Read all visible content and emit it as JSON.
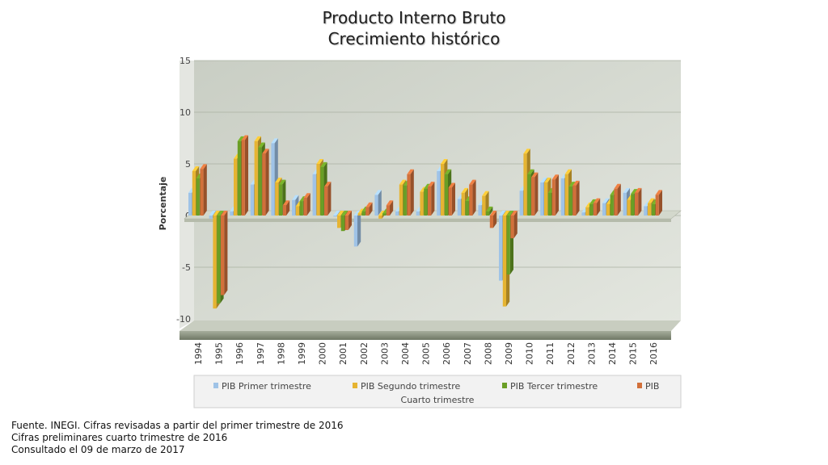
{
  "title_line1": "Producto Interno Bruto",
  "title_line2": "Crecimiento histórico",
  "footer": {
    "line1": "Fuente. INEGI. Cifras revisadas a partir del primer trimestre de 2016",
    "line2": "Cifras preliminares cuarto trimestre de 2016",
    "line3": "Consultado el 09 de marzo de 2017"
  },
  "chart_data": {
    "type": "bar",
    "ylabel": "Porcentaje",
    "ylim": [
      -10,
      15
    ],
    "yticks": [
      15,
      10,
      5,
      0,
      -5,
      -10
    ],
    "grid": true,
    "legend_position": "bottom",
    "categories": [
      "1994",
      "1995",
      "1996",
      "1997",
      "1998",
      "1999",
      "2000",
      "2001",
      "2002",
      "2003",
      "2004",
      "2005",
      "2006",
      "2007",
      "2008",
      "2009",
      "2010",
      "2011",
      "2012",
      "2013",
      "2014",
      "2015",
      "2016"
    ],
    "series": [
      {
        "name": "PIB Primer trimestre",
        "color": "#9fc3e7",
        "values": [
          2.2,
          -0.3,
          0.4,
          3.0,
          7.0,
          1.5,
          4.0,
          -0.1,
          -3.0,
          2.0,
          0.4,
          0.4,
          4.3,
          1.6,
          1.0,
          -6.3,
          2.4,
          3.2,
          3.6,
          0.3,
          1.2,
          2.2,
          0.9
        ]
      },
      {
        "name": "PIB Segundo trimestre",
        "color": "#e6b432",
        "values": [
          4.3,
          -9.0,
          5.5,
          7.2,
          3.2,
          0.9,
          5.0,
          -1.2,
          0.2,
          -0.3,
          3.0,
          2.3,
          5.0,
          2.2,
          1.9,
          -8.8,
          6.0,
          3.2,
          4.0,
          0.8,
          1.1,
          1.5,
          1.2
        ]
      },
      {
        "name": "PIB Tercer trimestre",
        "color": "#6a9e25",
        "values": [
          3.6,
          -8.5,
          7.2,
          6.6,
          3.0,
          1.4,
          4.7,
          -1.5,
          0.4,
          0.2,
          2.9,
          2.6,
          4.0,
          1.4,
          0.4,
          -5.7,
          4.0,
          2.2,
          2.8,
          1.1,
          2.0,
          2.1,
          1.1
        ]
      },
      {
        "name": "PIB\nCuarto trimestre",
        "color": "#d2703a",
        "values": [
          4.5,
          -7.7,
          7.3,
          6.0,
          1.0,
          1.7,
          2.8,
          -1.4,
          0.8,
          1.0,
          4.0,
          2.8,
          2.7,
          3.0,
          -1.2,
          -2.2,
          3.7,
          3.5,
          2.9,
          1.2,
          2.6,
          2.2,
          2.0
        ]
      }
    ]
  }
}
